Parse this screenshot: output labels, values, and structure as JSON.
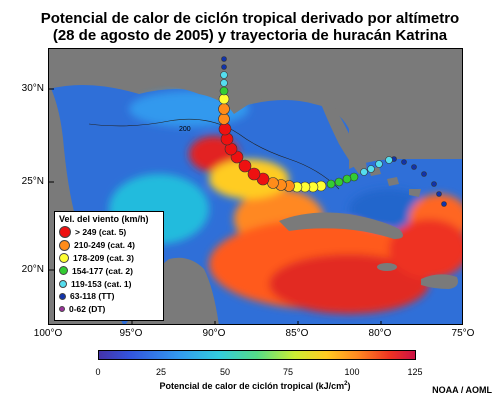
{
  "title_line1": "Potencial de calor de ciclón tropical derivado por altímetro",
  "title_line2": "(28 de agosto de 2005) y trayectoria de huracán Katrina",
  "lat_labels": [
    "30°N",
    "25°N",
    "20°N"
  ],
  "lon_labels": [
    "100°O",
    "95°O",
    "90°O",
    "85°O",
    "80°O",
    "75°O"
  ],
  "legend": {
    "title": "Vel. del viento (km/h)",
    "items": [
      {
        "label": "> 249 (cat. 5)",
        "color": "#ee1111"
      },
      {
        "label": "210-249 (cat. 4)",
        "color": "#ff8c1a"
      },
      {
        "label": "178-209 (cat. 3)",
        "color": "#ffff33"
      },
      {
        "label": "154-177 (cat. 2)",
        "color": "#33cc33"
      },
      {
        "label": "119-153 (cat. 1)",
        "color": "#55ddee"
      },
      {
        "label": "63-118 (TT)",
        "color": "#1133aa"
      },
      {
        "label": "0-62 (DT)",
        "color": "#993399"
      }
    ]
  },
  "colorbar": {
    "ticks": [
      "0",
      "25",
      "50",
      "75",
      "100",
      "125"
    ],
    "label": "Potencial de calor de ciclón tropical (kJ/cm",
    "label_sup": "2",
    "label_end": ")"
  },
  "contour_label": "200",
  "credit": "NOAA / AOML"
}
